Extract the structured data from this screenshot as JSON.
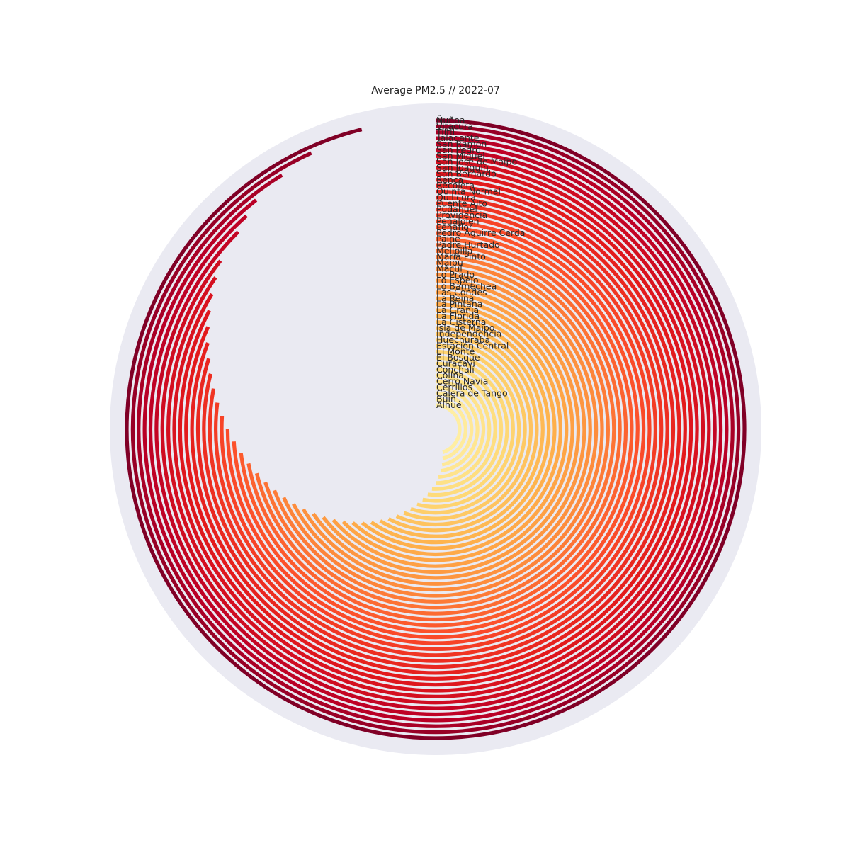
{
  "chart_data": {
    "type": "radial_bar",
    "title": "Average PM2.5 // 2022-07",
    "background_color": "#EAEAF2",
    "ring_gap_color": "#FFFFFF",
    "colormap": "YlOrRd",
    "grid": false,
    "categories": [
      "Ñuñoa",
      "Vitacura",
      "Tiltil",
      "Talagante",
      "San Ramón",
      "San Pedro",
      "San Miguel",
      "San José de Maipo",
      "San Joaquín",
      "San Bernardo",
      "Renca",
      "Recoleta",
      "Quinta Normal",
      "Quilicura",
      "Puente Alto",
      "Pudahuel",
      "Providencia",
      "Peñalolén",
      "Peñaflor",
      "Pedro Aguirre Cerda",
      "Paine",
      "Padre Hurtado",
      "Melipilla",
      "María Pinto",
      "Maipú",
      "Macul",
      "Lo Prado",
      "Lo Espejo",
      "Lo Barnechea",
      "Las Condes",
      "La Reina",
      "La Pintana",
      "La Granja",
      "La Florida",
      "La Cisterna",
      "Isla de Maipo",
      "Independencia",
      "Huechuraba",
      "Estación Central",
      "El Monte",
      "El Bosque",
      "Curacaví",
      "Conchalí",
      "Colina",
      "Cerro Navia",
      "Cerrillos",
      "Calera de Tango",
      "Buin",
      "Alhué"
    ],
    "values": [
      100.0,
      97.0,
      95.0,
      93.0,
      92.0,
      91.0,
      89.0,
      88.0,
      87.0,
      86.0,
      85.0,
      84.0,
      83.0,
      82.0,
      81.0,
      80.0,
      79.0,
      78.0,
      77.0,
      76.0,
      75.0,
      74.0,
      73.0,
      72.0,
      71.0,
      70.0,
      69.0,
      68.0,
      67.0,
      66.0,
      65.0,
      64.0,
      63.0,
      62.0,
      61.0,
      60.0,
      59.0,
      58.0,
      57.0,
      56.0,
      55.0,
      54.0,
      53.0,
      52.0,
      51.0,
      50.0,
      49.0,
      48.0,
      47.0
    ]
  }
}
